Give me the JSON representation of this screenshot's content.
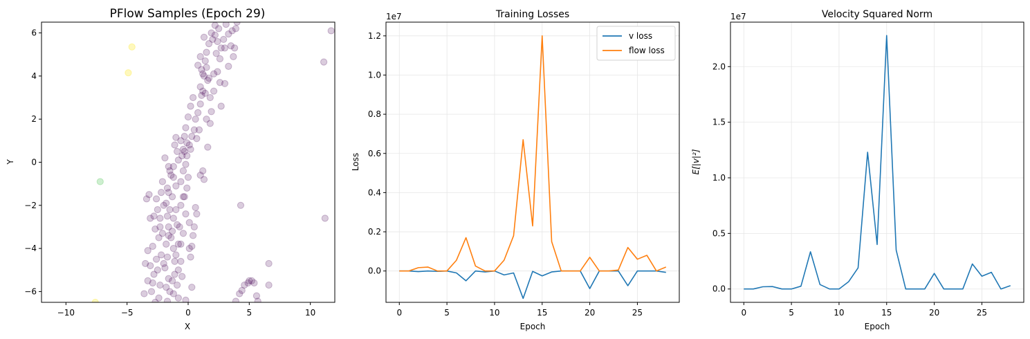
{
  "chart_data": [
    {
      "type": "scatter",
      "title": "PFlow Samples (Epoch 29)",
      "xlabel": "X",
      "ylabel": "Y",
      "xlim": [
        -12,
        12
      ],
      "ylim": [
        -6.5,
        6.5
      ],
      "xticks": [
        -10,
        -5,
        0,
        5,
        10
      ],
      "yticks": [
        -6,
        -4,
        -2,
        0,
        2,
        4,
        6
      ],
      "grid": false,
      "point_colors": {
        "main": "#440154",
        "outlier_yellow": "#fde725",
        "outlier_green": "#5ec962"
      },
      "highlight_points": [
        {
          "x": -4.6,
          "y": 5.35,
          "color": "outlier_yellow"
        },
        {
          "x": -4.9,
          "y": 4.15,
          "color": "outlier_yellow"
        },
        {
          "x": -7.2,
          "y": -0.9,
          "color": "outlier_green"
        },
        {
          "x": -7.6,
          "y": -6.5,
          "color": "outlier_yellow"
        }
      ],
      "points": [
        [
          11.7,
          6.1
        ],
        [
          11.1,
          4.65
        ],
        [
          11.2,
          -2.6
        ],
        [
          4.3,
          -2.0
        ],
        [
          6.6,
          -4.7
        ],
        [
          6.6,
          -5.7
        ],
        [
          5.0,
          -5.5
        ],
        [
          5.2,
          -5.5
        ],
        [
          5.4,
          -5.6
        ],
        [
          4.9,
          -5.6
        ],
        [
          4.6,
          -5.7
        ],
        [
          4.4,
          -5.95
        ],
        [
          5.6,
          -6.2
        ],
        [
          4.2,
          -6.1
        ],
        [
          3.9,
          -6.45
        ],
        [
          5.7,
          -6.45
        ],
        [
          4.0,
          6.5
        ],
        [
          3.9,
          6.2
        ],
        [
          3.6,
          6.1
        ],
        [
          3.5,
          5.4
        ],
        [
          3.3,
          5.95
        ],
        [
          3.8,
          5.3
        ],
        [
          3.0,
          5.3
        ],
        [
          2.7,
          5.3
        ],
        [
          3.3,
          4.45
        ],
        [
          3.0,
          3.65
        ],
        [
          2.6,
          3.7
        ],
        [
          2.4,
          4.2
        ],
        [
          2.7,
          2.6
        ],
        [
          2.0,
          5.7
        ],
        [
          2.2,
          5.9
        ],
        [
          2.5,
          6.2
        ],
        [
          2.3,
          5.05
        ],
        [
          2.1,
          4.1
        ],
        [
          1.7,
          3.9
        ],
        [
          1.9,
          2.35
        ],
        [
          1.8,
          1.8
        ],
        [
          1.6,
          0.7
        ],
        [
          1.2,
          -0.4
        ],
        [
          1.0,
          -0.6
        ],
        [
          1.3,
          -0.8
        ],
        [
          0.6,
          -2.1
        ],
        [
          0.7,
          -2.4
        ],
        [
          0.5,
          -3.0
        ],
        [
          0.4,
          -3.4
        ],
        [
          0.3,
          -3.9
        ],
        [
          0.1,
          -4.0
        ],
        [
          0.2,
          -4.4
        ],
        [
          0.3,
          -5.8
        ],
        [
          -0.2,
          -6.4
        ],
        [
          0.0,
          2.1
        ],
        [
          -0.2,
          1.6
        ],
        [
          -0.1,
          0.9
        ],
        [
          -0.4,
          0.6
        ],
        [
          -0.3,
          0.5
        ],
        [
          -0.5,
          0.3
        ],
        [
          0.2,
          0.6
        ],
        [
          -0.4,
          -0.4
        ],
        [
          -0.6,
          -0.9
        ],
        [
          -0.4,
          -1.6
        ],
        [
          -0.6,
          -2.0
        ],
        [
          -0.6,
          -3.8
        ],
        [
          -0.8,
          -3.8
        ],
        [
          -0.6,
          -4.6
        ],
        [
          -0.8,
          -5.0
        ],
        [
          -0.9,
          -5.7
        ],
        [
          -0.8,
          -6.3
        ],
        [
          -1.0,
          1.15
        ],
        [
          -1.1,
          0.8
        ],
        [
          -0.9,
          0.5
        ],
        [
          -1.2,
          -0.2
        ],
        [
          -1.4,
          -0.6
        ],
        [
          -1.2,
          -0.7
        ],
        [
          -1.0,
          -2.2
        ],
        [
          -1.2,
          -2.6
        ],
        [
          -1.3,
          -3.2
        ],
        [
          -1.4,
          -3.5
        ],
        [
          -1.2,
          -4.0
        ],
        [
          -1.0,
          -4.3
        ],
        [
          -1.1,
          -5.2
        ],
        [
          -1.3,
          -5.5
        ],
        [
          -1.2,
          -6.1
        ],
        [
          -1.6,
          -0.2
        ],
        [
          -1.5,
          -0.4
        ],
        [
          -1.7,
          -1.2
        ],
        [
          -1.6,
          -1.4
        ],
        [
          -1.8,
          -1.9
        ],
        [
          -1.5,
          -2.2
        ],
        [
          -1.7,
          -2.5
        ],
        [
          -1.6,
          -3.0
        ],
        [
          -1.6,
          -3.4
        ],
        [
          -1.8,
          -3.8
        ],
        [
          -1.7,
          -4.4
        ],
        [
          -1.9,
          -4.9
        ],
        [
          -1.6,
          -5.4
        ],
        [
          -1.8,
          -5.8
        ],
        [
          -1.5,
          -6.0
        ],
        [
          -1.7,
          -6.45
        ],
        [
          -1.9,
          0.2
        ],
        [
          -2.1,
          -0.9
        ],
        [
          -2.2,
          -1.4
        ],
        [
          -2.0,
          -2.0
        ],
        [
          -2.3,
          -2.6
        ],
        [
          -2.1,
          -3.3
        ],
        [
          -2.4,
          -3.5
        ],
        [
          -2.2,
          -4.3
        ],
        [
          -2.5,
          -5.0
        ],
        [
          -2.3,
          -5.7
        ],
        [
          -2.4,
          -6.3
        ],
        [
          -2.6,
          -1.7
        ],
        [
          -2.8,
          -2.5
        ],
        [
          -2.7,
          -3.1
        ],
        [
          -2.9,
          -3.9
        ],
        [
          -2.6,
          -4.5
        ],
        [
          -2.8,
          -5.2
        ],
        [
          -3.0,
          -6.0
        ],
        [
          -2.7,
          -6.5
        ],
        [
          -3.2,
          -1.5
        ],
        [
          -3.4,
          -1.7
        ],
        [
          -3.1,
          -2.6
        ],
        [
          -3.3,
          -4.1
        ],
        [
          -3.5,
          -4.7
        ],
        [
          -3.3,
          -5.5
        ],
        [
          -3.6,
          -6.1
        ],
        [
          1.0,
          2.7
        ],
        [
          1.1,
          3.1
        ],
        [
          1.2,
          3.3
        ],
        [
          1.0,
          3.5
        ],
        [
          1.3,
          4.0
        ],
        [
          1.1,
          4.3
        ],
        [
          1.4,
          4.7
        ],
        [
          1.5,
          5.1
        ],
        [
          1.7,
          5.5
        ],
        [
          1.9,
          6.0
        ],
        [
          2.2,
          6.35
        ],
        [
          1.5,
          4.4
        ],
        [
          1.6,
          3.8
        ],
        [
          1.4,
          3.2
        ],
        [
          0.8,
          2.3
        ],
        [
          0.6,
          2.0
        ],
        [
          0.5,
          1.5
        ],
        [
          0.3,
          1.2
        ],
        [
          0.1,
          0.8
        ],
        [
          -0.1,
          0.3
        ],
        [
          -0.2,
          -0.1
        ],
        [
          0.0,
          -0.7
        ],
        [
          -0.1,
          -1.2
        ],
        [
          -0.3,
          -1.6
        ],
        [
          -0.2,
          -2.4
        ],
        [
          0.1,
          -2.8
        ],
        [
          0.9,
          1.5
        ],
        [
          0.7,
          1.1
        ],
        [
          1.5,
          2.0
        ],
        [
          1.8,
          3.0
        ],
        [
          2.1,
          3.3
        ],
        [
          2.6,
          4.8
        ],
        [
          2.9,
          5.7
        ],
        [
          3.1,
          6.4
        ],
        [
          1.3,
          5.8
        ],
        [
          1.0,
          4.9
        ],
        [
          0.8,
          4.5
        ],
        [
          1.2,
          4.1
        ],
        [
          2.4,
          5.6
        ],
        [
          3.7,
          4.9
        ],
        [
          0.4,
          3.0
        ],
        [
          0.2,
          2.6
        ],
        [
          -0.3,
          1.2
        ],
        [
          -0.6,
          1.0
        ],
        [
          -0.8,
          0.1
        ],
        [
          -1.0,
          -1.1
        ],
        [
          -1.3,
          -1.6
        ],
        [
          -0.9,
          -2.9
        ],
        [
          -0.4,
          -3.3
        ],
        [
          -0.7,
          -3.0
        ],
        [
          -1.1,
          -4.6
        ],
        [
          -0.5,
          -5.3
        ],
        [
          -2.0,
          -4.7
        ],
        [
          -2.3,
          -3.0
        ],
        [
          -2.5,
          -2.2
        ],
        [
          -2.9,
          -5.6
        ],
        [
          -3.1,
          -4.8
        ]
      ]
    },
    {
      "type": "line",
      "title": "Training Losses",
      "xlabel": "Epoch",
      "ylabel": "Loss",
      "offset_text": "1e7",
      "xlim": [
        -1.4,
        29.4
      ],
      "ylim": [
        -0.16,
        1.27
      ],
      "xticks": [
        0,
        5,
        10,
        15,
        20,
        25
      ],
      "yticks": [
        0.0,
        0.2,
        0.4,
        0.6,
        0.8,
        1.0,
        1.2
      ],
      "grid": true,
      "legend_position": "top-right",
      "x": [
        0,
        1,
        2,
        3,
        4,
        5,
        6,
        7,
        8,
        9,
        10,
        11,
        12,
        13,
        14,
        15,
        16,
        17,
        18,
        19,
        20,
        21,
        22,
        23,
        24,
        25,
        26,
        27,
        28
      ],
      "series": [
        {
          "name": "v loss",
          "color": "#1f77b4",
          "values": [
            0.0,
            0.0,
            -0.003,
            0.0,
            -0.002,
            0.0,
            -0.01,
            -0.05,
            0.0,
            -0.005,
            0.0,
            -0.02,
            -0.01,
            -0.14,
            -0.002,
            -0.025,
            -0.005,
            0.0,
            0.0,
            0.0,
            -0.09,
            0.0,
            0.0,
            0.0,
            -0.075,
            0.0,
            0.0,
            0.0,
            -0.007
          ]
        },
        {
          "name": "flow loss",
          "color": "#ff7f0e",
          "values": [
            0.0,
            0.0,
            0.017,
            0.02,
            0.0,
            0.0,
            0.055,
            0.17,
            0.025,
            0.0,
            0.0,
            0.055,
            0.18,
            0.67,
            0.23,
            1.2,
            0.15,
            0.0,
            0.0,
            0.0,
            0.07,
            0.0,
            0.0,
            0.005,
            0.12,
            0.06,
            0.08,
            0.0,
            0.02
          ]
        }
      ]
    },
    {
      "type": "line",
      "title": "Velocity Squared Norm",
      "xlabel": "Epoch",
      "ylabel": "E[|v|²]",
      "offset_text": "1e7",
      "xlim": [
        -1.4,
        29.4
      ],
      "ylim": [
        -0.12,
        2.4
      ],
      "xticks": [
        0,
        5,
        10,
        15,
        20,
        25
      ],
      "yticks": [
        0.0,
        0.5,
        1.0,
        1.5,
        2.0
      ],
      "grid": true,
      "x": [
        0,
        1,
        2,
        3,
        4,
        5,
        6,
        7,
        8,
        9,
        10,
        11,
        12,
        13,
        14,
        15,
        16,
        17,
        18,
        19,
        20,
        21,
        22,
        23,
        24,
        25,
        26,
        27,
        28
      ],
      "series": [
        {
          "name": "",
          "color": "#1f77b4",
          "values": [
            0.0,
            0.0,
            0.02,
            0.022,
            0.0,
            0.0,
            0.025,
            0.335,
            0.04,
            0.0,
            0.0,
            0.065,
            0.19,
            1.23,
            0.4,
            2.28,
            0.35,
            0.0,
            0.0,
            0.0,
            0.14,
            0.0,
            0.0,
            0.0,
            0.225,
            0.115,
            0.15,
            0.0,
            0.03
          ]
        }
      ]
    }
  ]
}
